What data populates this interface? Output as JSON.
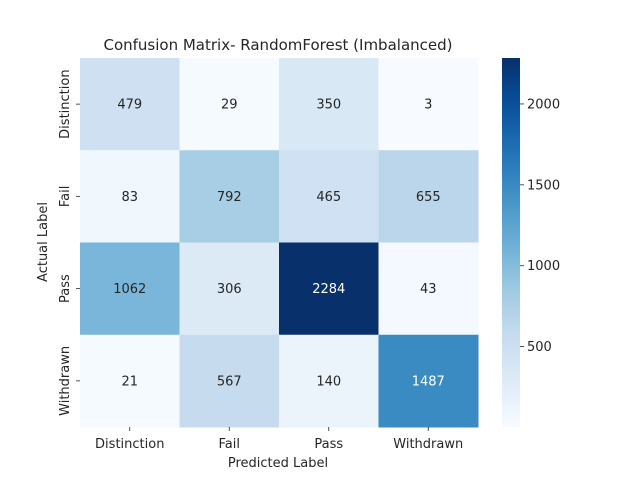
{
  "chart_data": {
    "type": "heatmap",
    "title": "Confusion Matrix- RandomForest (Imbalanced)",
    "xlabel": "Predicted Label",
    "ylabel": "Actual Label",
    "x_categories": [
      "Distinction",
      "Fail",
      "Pass",
      "Withdrawn"
    ],
    "y_categories": [
      "Distinction",
      "Fail",
      "Pass",
      "Withdrawn"
    ],
    "values": [
      [
        479,
        29,
        350,
        3
      ],
      [
        83,
        792,
        465,
        655
      ],
      [
        1062,
        306,
        2284,
        43
      ],
      [
        21,
        567,
        140,
        1487
      ]
    ],
    "value_range": [
      3,
      2284
    ],
    "colormap": "Blues",
    "colorbar": {
      "ticks": [
        500,
        1000,
        1500,
        2000
      ]
    },
    "colors": {
      "low": "#f7fbff",
      "high": "#08306b",
      "text_dark": "#262626",
      "text_light": "#ffffff"
    }
  }
}
